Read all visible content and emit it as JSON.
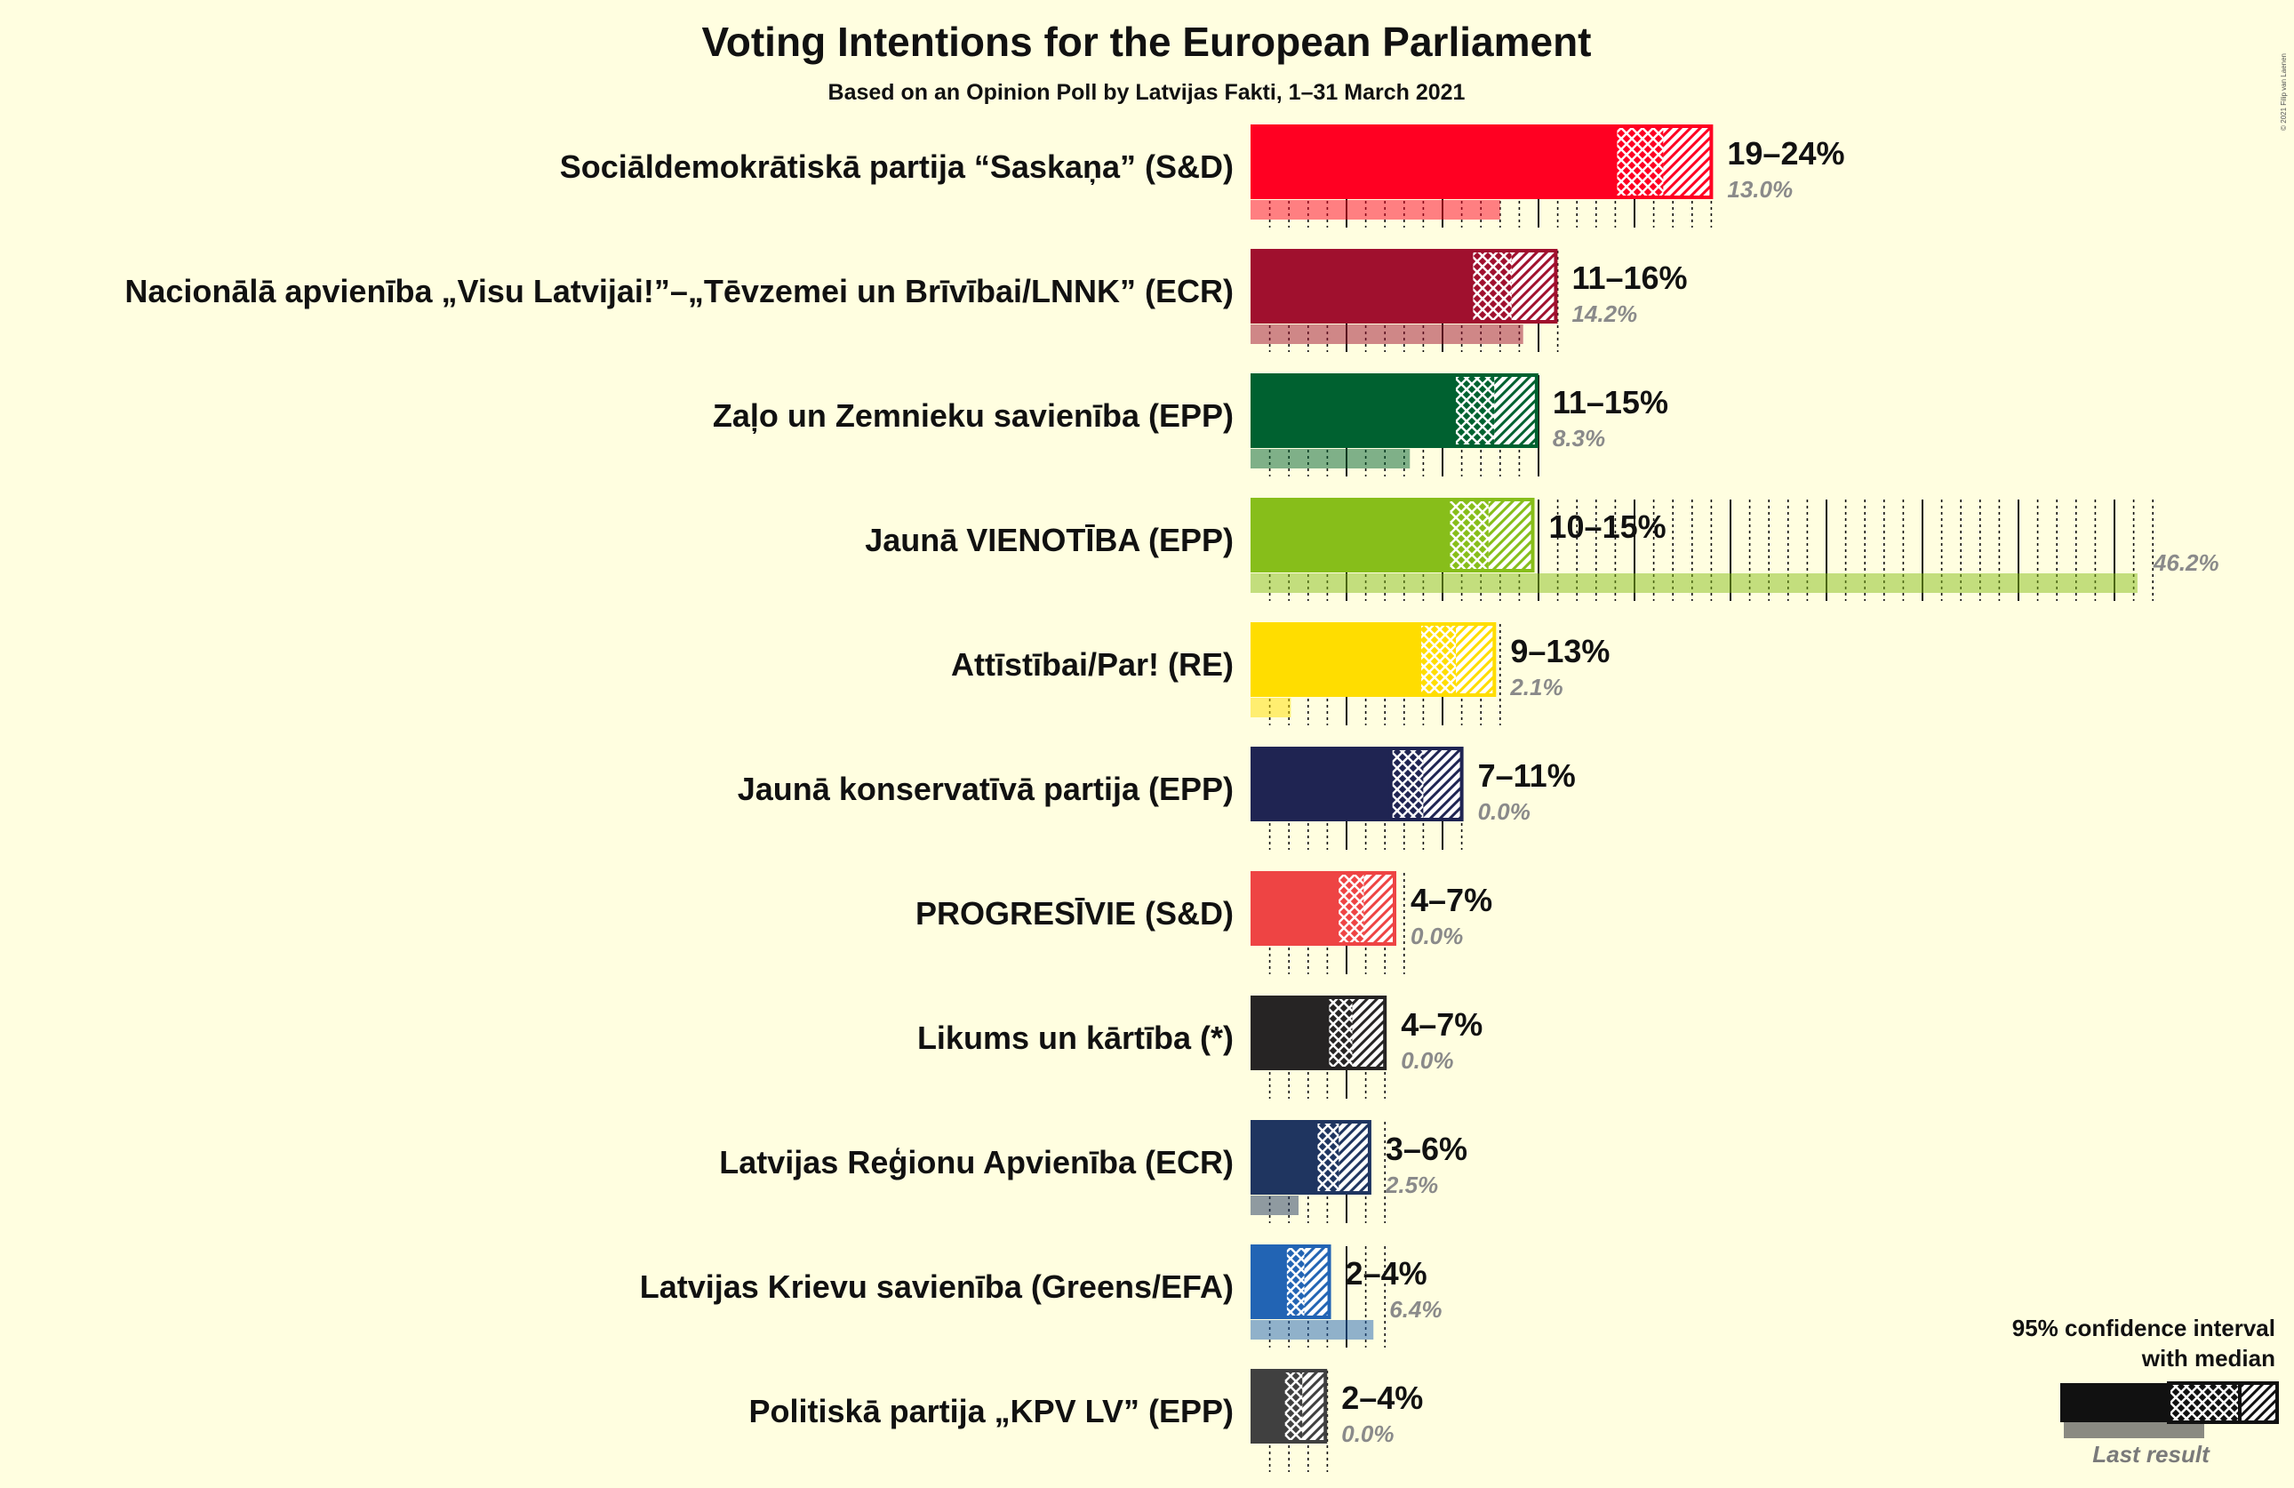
{
  "chart_data": {
    "type": "bar",
    "title": "Voting Intentions for the European Parliament",
    "subtitle": "Based on an Opinion Poll by Latvijas Fakti, 1–31 March 2021",
    "copyright": "© 2021 Filip van Laenen",
    "legend": {
      "line1": "95% confidence interval",
      "line2": "with median",
      "last_result": "Last result",
      "placement": "bottom-right"
    },
    "series": [
      {
        "party": "Sociāldemokrātiskā partija “Saskaņa” (S&D)",
        "range": "19–24%",
        "low": 19,
        "median": 21.5,
        "high": 24,
        "last": 13.0,
        "last_label": "13.0%",
        "color": "#FF0022"
      },
      {
        "party": "Nacionālā apvienība „Visu Latvijai!”–„Tēvzemei un Brīvībai/LNNK” (ECR)",
        "range": "11–16%",
        "low": 11.5,
        "median": 13.6,
        "high": 15.9,
        "last": 14.2,
        "last_label": "14.2%",
        "color": "#A0102E"
      },
      {
        "party": "Zaļo un Zemnieku savienība (EPP)",
        "range": "11–15%",
        "low": 10.6,
        "median": 12.7,
        "high": 14.9,
        "last": 8.3,
        "last_label": "8.3%",
        "color": "#006130"
      },
      {
        "party": "Jaunā VIENOTĪBA (EPP)",
        "range": "10–15%",
        "low": 10.3,
        "median": 12.4,
        "high": 14.7,
        "last": 46.2,
        "last_label": "46.2%",
        "color": "#87BE1A"
      },
      {
        "party": "Attīstībai/Par! (RE)",
        "range": "9–13%",
        "low": 8.8,
        "median": 10.7,
        "high": 12.7,
        "last": 2.1,
        "last_label": "2.1%",
        "color": "#FFDD00"
      },
      {
        "party": "Jaunā konservatīvā partija (EPP)",
        "range": "7–11%",
        "low": 7.3,
        "median": 9.0,
        "high": 11.0,
        "last": 0.0,
        "last_label": "0.0%",
        "color": "#1F2452"
      },
      {
        "party": "PROGRESĪVIE (S&D)",
        "range": "4–7%",
        "low": 4.5,
        "median": 5.9,
        "high": 7.5,
        "last": 0.0,
        "last_label": "0.0%",
        "color": "#EE4444"
      },
      {
        "party": "Likums un kārtība (*)",
        "range": "4–7%",
        "low": 4.0,
        "median": 5.3,
        "high": 7.0,
        "last": 0.0,
        "last_label": "0.0%",
        "color": "#262424"
      },
      {
        "party": "Latvijas Reģionu Apvienība (ECR)",
        "range": "3–6%",
        "low": 3.4,
        "median": 4.6,
        "high": 6.2,
        "last": 2.5,
        "last_label": "2.5%",
        "color": "#1F3560"
      },
      {
        "party": "Latvijas Krievu savienība (Greens/EFA)",
        "range": "2–4%",
        "low": 1.8,
        "median": 2.8,
        "high": 4.1,
        "last": 6.4,
        "last_label": "6.4%",
        "color": "#2264B4"
      },
      {
        "party": "Politiskā partija „KPV LV” (EPP)",
        "range": "2–4%",
        "low": 1.7,
        "median": 2.7,
        "high": 3.9,
        "last": 0.0,
        "last_label": "0.0%",
        "color": "#404040"
      }
    ]
  }
}
